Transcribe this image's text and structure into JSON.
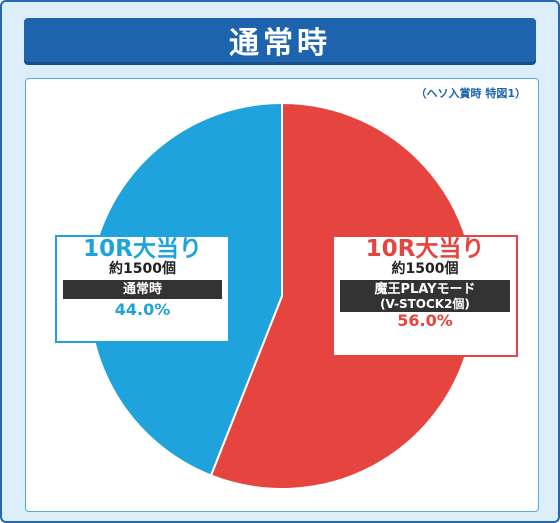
{
  "header": {
    "title": "通常時"
  },
  "note": "（ヘソ入賞時 特図1）",
  "colors": {
    "blue": "#1ea3dc",
    "red": "#e5453e",
    "title_bg": "#1e63ae",
    "frame_bg": "#dceef9"
  },
  "chart_data": {
    "type": "pie",
    "title": "通常時",
    "slices": [
      {
        "label": "10R大当り 約1500個 魔王PLAYモード (V-STOCK2個)",
        "value": 56.0,
        "color": "#e5453e"
      },
      {
        "label": "10R大当り 約1500個 通常時",
        "value": 44.0,
        "color": "#1ea3dc"
      }
    ]
  },
  "labels": {
    "left": {
      "big": "10R大当り",
      "small": "約1500個",
      "band": "通常時",
      "pct": "44.0%"
    },
    "right": {
      "big": "10R大当り",
      "small": "約1500個",
      "band1": "魔王PLAYモード",
      "band2": "(V-STOCK2個)",
      "pct": "56.0%"
    }
  }
}
